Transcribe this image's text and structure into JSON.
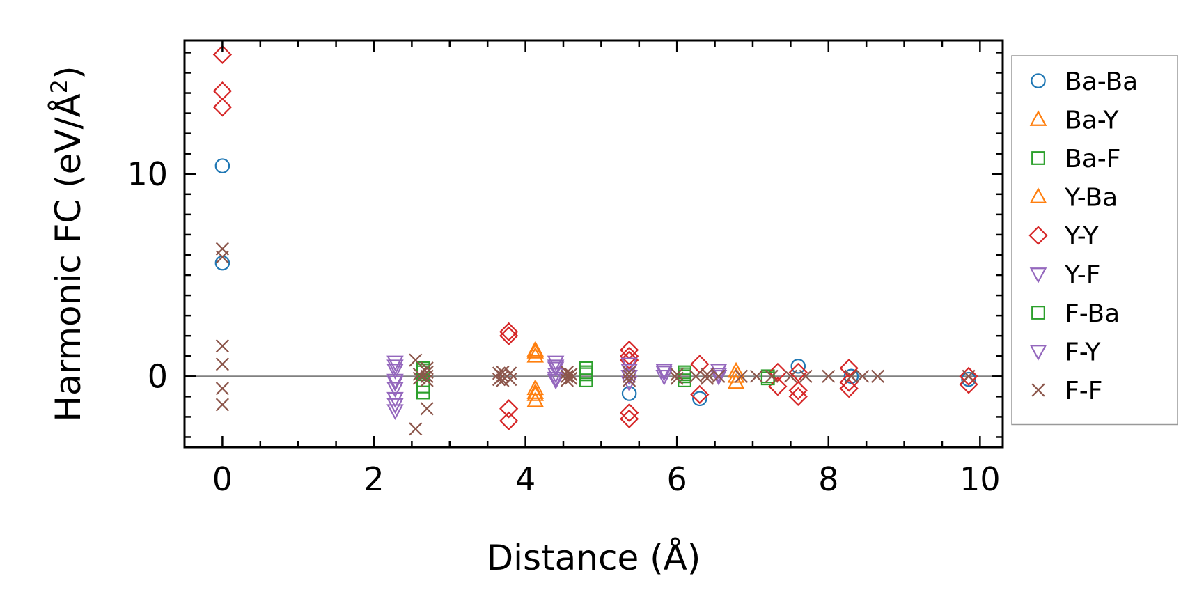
{
  "chart_data": {
    "type": "scatter",
    "title": "",
    "xlabel": "Distance (Å)",
    "ylabel": "Harmonic FC (eV/Å²)",
    "ylabel_main": "Harmonic FC (eV/Å",
    "ylabel_sup": "2",
    "ylabel_close": ")",
    "xlim": [
      -0.5,
      10.3
    ],
    "ylim": [
      -3.5,
      16.6
    ],
    "xticks": [
      0,
      2,
      4,
      6,
      8,
      10
    ],
    "yticks": [
      0,
      10
    ],
    "grid": false,
    "legend_position": "outside-right",
    "series": [
      {
        "name": "Ba-Ba",
        "marker": "circle",
        "color": "#1f77b4",
        "points": [
          [
            0,
            10.4
          ],
          [
            0,
            5.6
          ],
          [
            5.37,
            -0.85
          ],
          [
            6.3,
            -1.1
          ],
          [
            7.6,
            0.5
          ],
          [
            8.3,
            0.0
          ],
          [
            9.85,
            -0.15
          ]
        ]
      },
      {
        "name": "Ba-Y",
        "marker": "triangle-up",
        "color": "#ff7f0e",
        "points": [
          [
            4.13,
            1.3
          ],
          [
            4.13,
            1.0
          ],
          [
            4.13,
            -0.6
          ],
          [
            4.13,
            -0.8
          ],
          [
            4.13,
            -1.2
          ],
          [
            6.78,
            0.25
          ],
          [
            6.78,
            -0.3
          ]
        ]
      },
      {
        "name": "Ba-F",
        "marker": "square",
        "color": "#2ca02c",
        "points": [
          [
            2.65,
            0.4
          ],
          [
            2.65,
            0.2
          ],
          [
            2.65,
            -0.2
          ],
          [
            2.65,
            -0.8
          ],
          [
            4.8,
            0.4
          ],
          [
            4.8,
            0.2
          ],
          [
            4.8,
            -0.2
          ],
          [
            6.1,
            0.2
          ],
          [
            6.1,
            0.0
          ],
          [
            6.1,
            -0.2
          ],
          [
            7.2,
            0.0
          ]
        ]
      },
      {
        "name": "Y-Ba",
        "marker": "triangle-up",
        "color": "#ff7f0e",
        "points": [
          [
            4.13,
            1.2
          ],
          [
            4.13,
            -0.9
          ],
          [
            6.78,
            0.0
          ]
        ]
      },
      {
        "name": "Y-Y",
        "marker": "diamond",
        "color": "#d62728",
        "points": [
          [
            0,
            15.9
          ],
          [
            0,
            14.1
          ],
          [
            0,
            13.3
          ],
          [
            3.78,
            2.2
          ],
          [
            3.78,
            2.0
          ],
          [
            3.78,
            -1.6
          ],
          [
            3.78,
            -2.2
          ],
          [
            5.37,
            1.3
          ],
          [
            5.37,
            1.0
          ],
          [
            5.37,
            0.8
          ],
          [
            5.37,
            -1.8
          ],
          [
            5.37,
            -2.1
          ],
          [
            6.3,
            0.6
          ],
          [
            6.3,
            -0.9
          ],
          [
            7.33,
            0.2
          ],
          [
            7.33,
            -0.5
          ],
          [
            7.6,
            0.2
          ],
          [
            7.6,
            -0.7
          ],
          [
            7.6,
            -1.0
          ],
          [
            8.27,
            0.4
          ],
          [
            8.27,
            -0.3
          ],
          [
            8.27,
            -0.6
          ],
          [
            9.85,
            0.0
          ],
          [
            9.85,
            -0.4
          ]
        ]
      },
      {
        "name": "Y-F",
        "marker": "triangle-down",
        "color": "#9467bd",
        "points": [
          [
            2.28,
            0.7
          ],
          [
            2.28,
            0.3
          ],
          [
            2.28,
            -0.3
          ],
          [
            2.28,
            -0.6
          ],
          [
            2.28,
            -1.1
          ],
          [
            2.28,
            -1.4
          ],
          [
            2.28,
            -1.7
          ],
          [
            4.4,
            0.7
          ],
          [
            4.4,
            0.4
          ],
          [
            4.4,
            0.1
          ],
          [
            4.4,
            -0.2
          ],
          [
            5.37,
            0.6
          ],
          [
            5.37,
            0.3
          ],
          [
            5.37,
            0.0
          ],
          [
            5.37,
            -0.3
          ],
          [
            5.83,
            0.3
          ],
          [
            5.83,
            0.0
          ],
          [
            6.55,
            0.3
          ],
          [
            6.55,
            0.0
          ]
        ]
      },
      {
        "name": "F-Ba",
        "marker": "square",
        "color": "#2ca02c",
        "points": [
          [
            2.65,
            0.3
          ],
          [
            2.65,
            -0.5
          ],
          [
            4.8,
            0.1
          ],
          [
            6.1,
            0.1
          ],
          [
            7.2,
            -0.1
          ]
        ]
      },
      {
        "name": "F-Y",
        "marker": "triangle-down",
        "color": "#9467bd",
        "points": [
          [
            2.28,
            0.5
          ],
          [
            2.28,
            -0.2
          ],
          [
            4.4,
            0.5
          ],
          [
            4.4,
            -0.1
          ],
          [
            5.83,
            0.2
          ],
          [
            6.55,
            0.1
          ]
        ]
      },
      {
        "name": "F-F",
        "marker": "x",
        "color": "#8c564b",
        "points": [
          [
            0,
            6.3
          ],
          [
            0,
            5.9
          ],
          [
            0,
            1.5
          ],
          [
            0,
            0.6
          ],
          [
            0,
            -0.6
          ],
          [
            0,
            -1.4
          ],
          [
            2.55,
            0.8
          ],
          [
            2.55,
            -2.6
          ],
          [
            2.7,
            0.4
          ],
          [
            2.7,
            0.2
          ],
          [
            2.7,
            0.0
          ],
          [
            2.7,
            -0.2
          ],
          [
            2.7,
            -1.6
          ],
          [
            2.6,
            0.1
          ],
          [
            2.6,
            -0.1
          ],
          [
            3.65,
            0.15
          ],
          [
            3.65,
            -0.15
          ],
          [
            3.7,
            0.2
          ],
          [
            3.7,
            0.0
          ],
          [
            3.7,
            -0.2
          ],
          [
            3.8,
            0.15
          ],
          [
            3.8,
            -0.15
          ],
          [
            4.55,
            0.2
          ],
          [
            4.55,
            0.0
          ],
          [
            4.55,
            -0.2
          ],
          [
            4.6,
            0.1
          ],
          [
            4.6,
            -0.1
          ],
          [
            5.37,
            0.2
          ],
          [
            5.37,
            0.0
          ],
          [
            5.37,
            -0.2
          ],
          [
            6.0,
            0.1
          ],
          [
            6.0,
            -0.1
          ],
          [
            6.25,
            0.0
          ],
          [
            6.4,
            0.1
          ],
          [
            6.4,
            -0.1
          ],
          [
            6.55,
            0.0
          ],
          [
            6.85,
            0.0
          ],
          [
            7.05,
            0.0
          ],
          [
            7.25,
            0.0
          ],
          [
            7.5,
            0.0
          ],
          [
            7.7,
            0.0
          ],
          [
            8.0,
            0.0
          ],
          [
            8.3,
            0.0
          ],
          [
            8.45,
            0.0
          ],
          [
            8.65,
            0.0
          ],
          [
            9.85,
            0.0
          ]
        ]
      }
    ]
  }
}
